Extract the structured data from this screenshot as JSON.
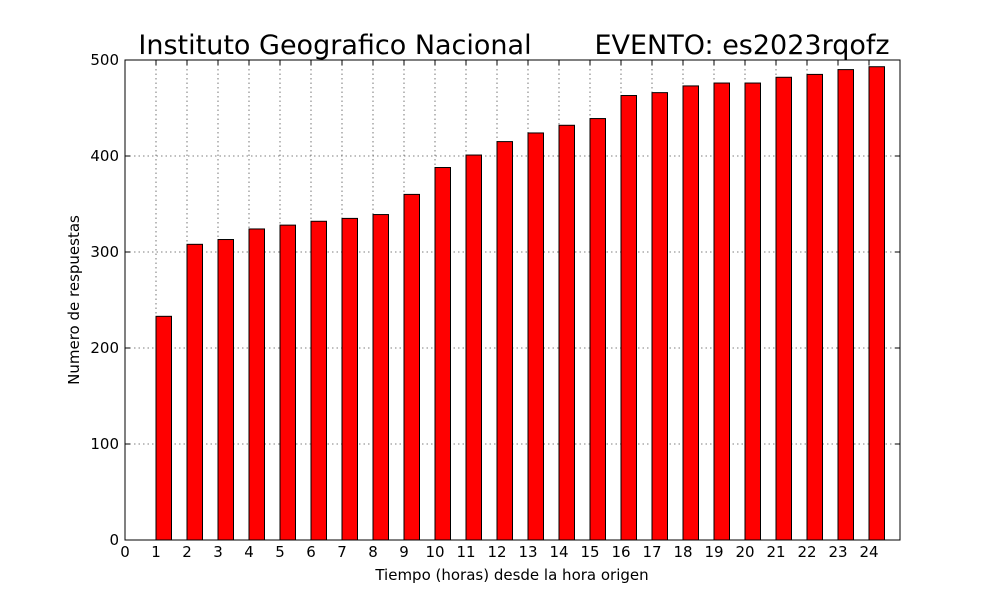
{
  "chart_data": {
    "type": "bar",
    "title_left": "Instituto Geografico Nacional",
    "title_right": "EVENTO: es2023rqofz",
    "xlabel": "Tiempo (horas) desde la hora origen",
    "ylabel": "Numero de respuestas",
    "categories": [
      1,
      2,
      3,
      4,
      5,
      6,
      7,
      8,
      9,
      10,
      11,
      12,
      13,
      14,
      15,
      16,
      17,
      18,
      19,
      20,
      21,
      22,
      23,
      24
    ],
    "values": [
      233,
      308,
      313,
      324,
      328,
      332,
      335,
      339,
      360,
      388,
      401,
      415,
      424,
      432,
      439,
      463,
      466,
      473,
      476,
      476,
      482,
      485,
      490,
      493
    ],
    "x_ticks": [
      "0",
      "1",
      "2",
      "3",
      "4",
      "5",
      "6",
      "7",
      "8",
      "9",
      "10",
      "11",
      "12",
      "13",
      "14",
      "15",
      "16",
      "17",
      "18",
      "19",
      "20",
      "21",
      "22",
      "23",
      "24"
    ],
    "y_ticks": [
      "0",
      "100",
      "200",
      "300",
      "400",
      "500"
    ],
    "xlim": [
      0,
      25
    ],
    "ylim": [
      0,
      500
    ],
    "grid": true,
    "bar_color": "#ff0000"
  }
}
